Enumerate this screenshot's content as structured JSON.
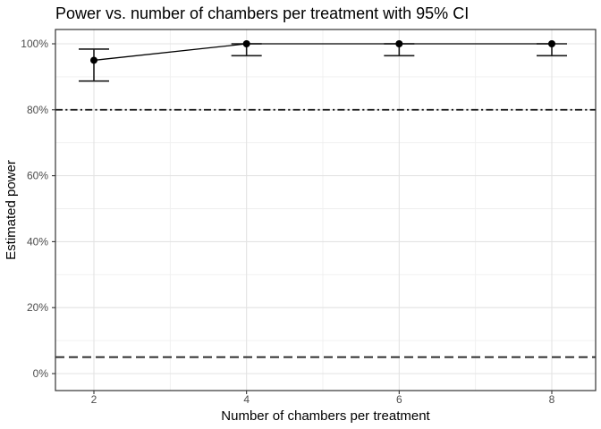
{
  "chart_data": {
    "type": "line",
    "title": "Power vs. number of chambers per treatment with 95% CI",
    "xlabel": "Number of chambers per treatment",
    "ylabel": "Estimated power",
    "x": [
      2,
      4,
      6,
      8
    ],
    "series": [
      {
        "name": "Estimated power",
        "values": [
          95,
          100,
          100,
          100
        ],
        "ci_lower": [
          88.7,
          96.4,
          96.4,
          96.4
        ],
        "ci_upper": [
          98.4,
          100,
          100,
          100
        ]
      }
    ],
    "x_ticks": [
      {
        "label": "2",
        "value": 2
      },
      {
        "label": "4",
        "value": 4
      },
      {
        "label": "6",
        "value": 6
      },
      {
        "label": "8",
        "value": 8
      }
    ],
    "x_minor_ticks": [
      3,
      5,
      7
    ],
    "y_ticks": [
      {
        "label": "0%",
        "value": 0
      },
      {
        "label": "20%",
        "value": 20
      },
      {
        "label": "40%",
        "value": 40
      },
      {
        "label": "60%",
        "value": 60
      },
      {
        "label": "80%",
        "value": 80
      },
      {
        "label": "100%",
        "value": 100
      }
    ],
    "y_minor_ticks": [
      10,
      30,
      50,
      70,
      90
    ],
    "xlim": [
      1.5,
      8.6
    ],
    "ylim": [
      -5.2,
      104.3
    ],
    "grid": true,
    "legend": "none",
    "reference_lines": [
      {
        "value": 80,
        "style": "dotdash"
      },
      {
        "value": 5,
        "style": "dashed"
      }
    ],
    "colors": {
      "point": "#000000",
      "line": "#000000",
      "errorbar": "#1a1a1a",
      "reference_line": "#222222",
      "grid_major": "#e3e3e3",
      "grid_minor": "#efefef",
      "panel_border": "#333333",
      "axis_text": "#4d4d4d",
      "title_text": "#000000",
      "background": "#ffffff"
    }
  }
}
